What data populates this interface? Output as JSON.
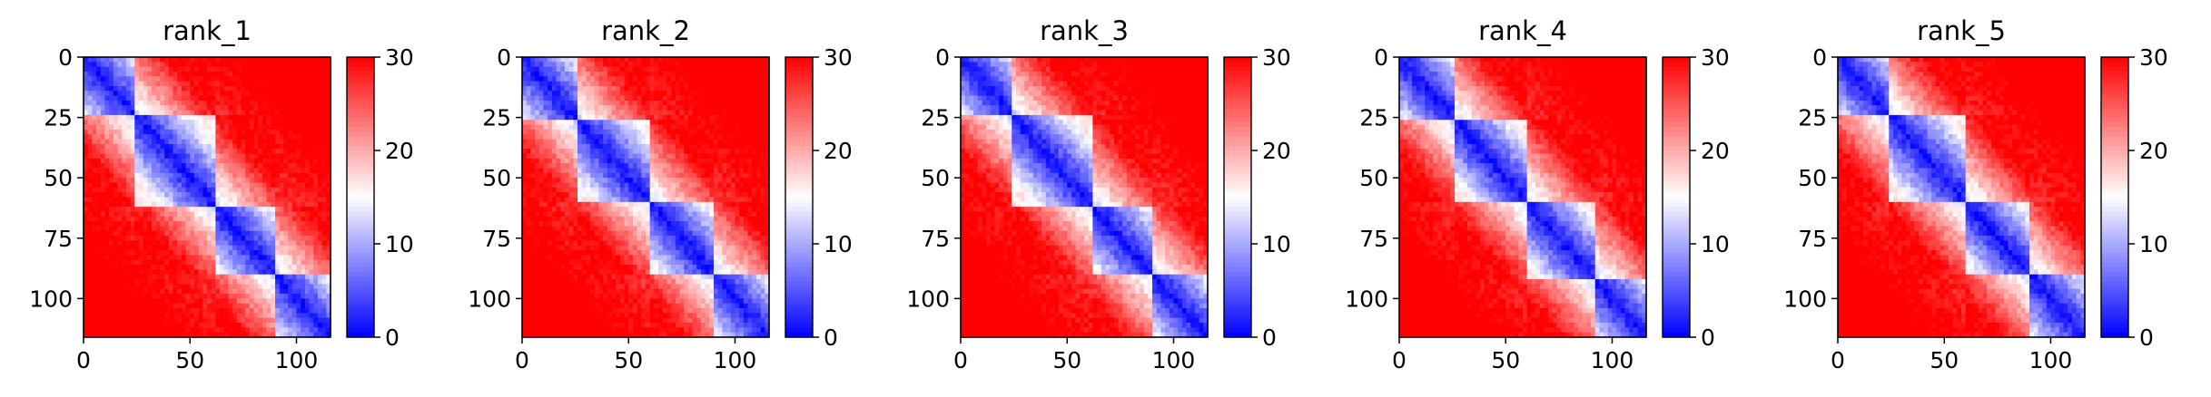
{
  "chart_data": [
    {
      "type": "heatmap",
      "title": "rank_1",
      "xticks": [
        0,
        50,
        100
      ],
      "yticks": [
        0,
        25,
        50,
        75,
        100
      ],
      "xlim": [
        0,
        116
      ],
      "ylim": [
        116,
        0
      ],
      "colorbar": {
        "ticks": [
          0,
          10,
          20,
          30
        ],
        "range": [
          0,
          30
        ],
        "colormap": "bwr",
        "low_color": "#0000ff",
        "mid_color": "#ffffff",
        "high_color": "#ff0000"
      },
      "domains": [
        [
          0,
          24
        ],
        [
          24,
          62
        ],
        [
          62,
          91
        ],
        [
          91,
          116
        ]
      ]
    },
    {
      "type": "heatmap",
      "title": "rank_2",
      "xticks": [
        0,
        50,
        100
      ],
      "yticks": [
        0,
        25,
        50,
        75,
        100
      ],
      "xlim": [
        0,
        116
      ],
      "ylim": [
        116,
        0
      ],
      "colorbar": {
        "ticks": [
          0,
          10,
          20,
          30
        ],
        "range": [
          0,
          30
        ],
        "colormap": "bwr",
        "low_color": "#0000ff",
        "mid_color": "#ffffff",
        "high_color": "#ff0000"
      },
      "domains": [
        [
          0,
          27
        ],
        [
          27,
          60
        ],
        [
          60,
          91
        ],
        [
          91,
          116
        ]
      ]
    },
    {
      "type": "heatmap",
      "title": "rank_3",
      "xticks": [
        0,
        50,
        100
      ],
      "yticks": [
        0,
        25,
        50,
        75,
        100
      ],
      "xlim": [
        0,
        116
      ],
      "ylim": [
        116,
        0
      ],
      "colorbar": {
        "ticks": [
          0,
          10,
          20,
          30
        ],
        "range": [
          0,
          30
        ],
        "colormap": "bwr",
        "low_color": "#0000ff",
        "mid_color": "#ffffff",
        "high_color": "#ff0000"
      },
      "domains": [
        [
          0,
          25
        ],
        [
          25,
          62
        ],
        [
          62,
          90
        ],
        [
          90,
          116
        ]
      ]
    },
    {
      "type": "heatmap",
      "title": "rank_4",
      "xticks": [
        0,
        50,
        100
      ],
      "yticks": [
        0,
        25,
        50,
        75,
        100
      ],
      "xlim": [
        0,
        116
      ],
      "ylim": [
        116,
        0
      ],
      "colorbar": {
        "ticks": [
          0,
          10,
          20,
          30
        ],
        "range": [
          0,
          30
        ],
        "colormap": "bwr",
        "low_color": "#0000ff",
        "mid_color": "#ffffff",
        "high_color": "#ff0000"
      },
      "domains": [
        [
          0,
          26
        ],
        [
          26,
          60
        ],
        [
          60,
          92
        ],
        [
          92,
          116
        ]
      ]
    },
    {
      "type": "heatmap",
      "title": "rank_5",
      "xticks": [
        0,
        50,
        100
      ],
      "yticks": [
        0,
        25,
        50,
        75,
        100
      ],
      "xlim": [
        0,
        116
      ],
      "ylim": [
        116,
        0
      ],
      "colorbar": {
        "ticks": [
          0,
          10,
          20,
          30
        ],
        "range": [
          0,
          30
        ],
        "colormap": "bwr",
        "low_color": "#0000ff",
        "mid_color": "#ffffff",
        "high_color": "#ff0000"
      },
      "domains": [
        [
          0,
          24
        ],
        [
          24,
          61
        ],
        [
          61,
          90
        ],
        [
          90,
          116
        ]
      ]
    }
  ]
}
